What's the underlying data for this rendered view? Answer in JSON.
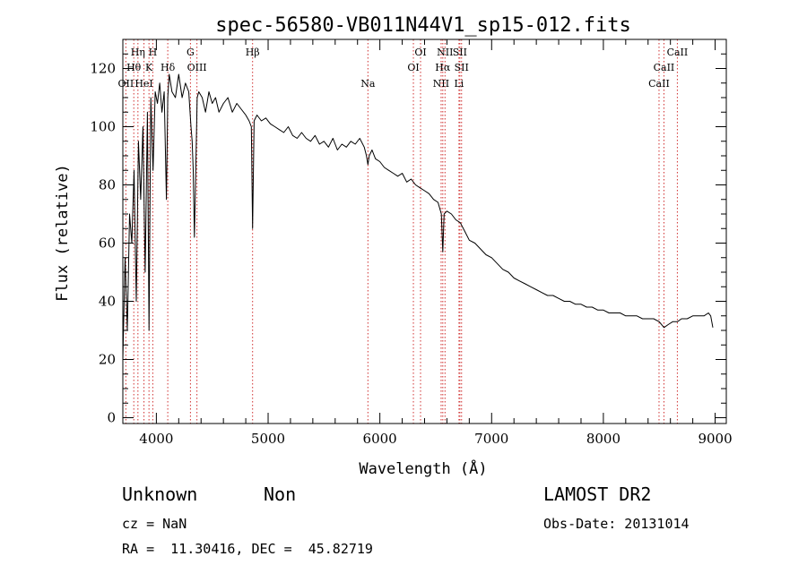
{
  "chart_data": {
    "type": "line",
    "title": "spec-56580-VB011N44V1_sp15-012.fits",
    "xlabel": "Wavelength (Å)",
    "ylabel": "Flux (relative)",
    "xlim": [
      3700,
      9100
    ],
    "ylim": [
      -2,
      130
    ],
    "xticks": [
      4000,
      5000,
      6000,
      7000,
      8000,
      9000
    ],
    "yticks": [
      0,
      20,
      40,
      60,
      80,
      100,
      120
    ],
    "grid": false,
    "series": [
      {
        "x": [
          3700,
          3720,
          3740,
          3760,
          3780,
          3800,
          3820,
          3840,
          3860,
          3880,
          3900,
          3920,
          3934,
          3950,
          3970,
          3990,
          4010,
          4030,
          4050,
          4070,
          4090,
          4102,
          4115,
          4140,
          4170,
          4200,
          4230,
          4260,
          4290,
          4310,
          4320,
          4330,
          4340,
          4350,
          4365,
          4380,
          4410,
          4440,
          4470,
          4500,
          4530,
          4560,
          4600,
          4640,
          4680,
          4720,
          4760,
          4800,
          4830,
          4850,
          4861,
          4875,
          4900,
          4940,
          4980,
          5020,
          5060,
          5100,
          5140,
          5180,
          5220,
          5260,
          5300,
          5340,
          5380,
          5420,
          5460,
          5500,
          5540,
          5580,
          5620,
          5660,
          5700,
          5740,
          5780,
          5820,
          5860,
          5880,
          5893,
          5905,
          5930,
          5960,
          6000,
          6040,
          6080,
          6120,
          6160,
          6200,
          6240,
          6280,
          6320,
          6360,
          6400,
          6440,
          6480,
          6520,
          6550,
          6563,
          6575,
          6600,
          6640,
          6680,
          6720,
          6760,
          6800,
          6850,
          6900,
          6950,
          7000,
          7050,
          7100,
          7150,
          7200,
          7250,
          7300,
          7350,
          7400,
          7450,
          7500,
          7550,
          7600,
          7650,
          7700,
          7750,
          7800,
          7850,
          7900,
          7950,
          8000,
          8050,
          8100,
          8150,
          8200,
          8250,
          8300,
          8350,
          8400,
          8450,
          8500,
          8542,
          8580,
          8620,
          8662,
          8700,
          8750,
          8800,
          8850,
          8900,
          8940,
          8960,
          8980
        ],
        "y": [
          20,
          55,
          30,
          70,
          60,
          85,
          40,
          95,
          75,
          100,
          50,
          105,
          30,
          110,
          85,
          112,
          108,
          115,
          105,
          112,
          75,
          110,
          118,
          112,
          110,
          118,
          110,
          115,
          112,
          100,
          95,
          85,
          62,
          80,
          110,
          112,
          110,
          105,
          112,
          108,
          110,
          105,
          108,
          110,
          105,
          108,
          106,
          104,
          102,
          100,
          65,
          102,
          104,
          102,
          103,
          101,
          100,
          99,
          98,
          100,
          97,
          96,
          98,
          96,
          95,
          97,
          94,
          95,
          93,
          96,
          92,
          94,
          93,
          95,
          94,
          96,
          93,
          90,
          87,
          90,
          92,
          89,
          88,
          86,
          85,
          84,
          83,
          84,
          81,
          82,
          80,
          79,
          78,
          77,
          75,
          74,
          70,
          57,
          70,
          71,
          70,
          68,
          67,
          64,
          61,
          60,
          58,
          56,
          55,
          53,
          51,
          50,
          48,
          47,
          46,
          45,
          44,
          43,
          42,
          42,
          41,
          40,
          40,
          39,
          39,
          38,
          38,
          37,
          37,
          36,
          36,
          36,
          35,
          35,
          35,
          34,
          34,
          34,
          33,
          31,
          32,
          33,
          33,
          34,
          34,
          35,
          35,
          35,
          36,
          35,
          31
        ]
      }
    ],
    "lines": [
      {
        "label": "Hη",
        "x": 3835,
        "row": 0
      },
      {
        "label": "H",
        "x": 3968,
        "row": 0
      },
      {
        "label": "G",
        "x": 4305,
        "row": 0
      },
      {
        "label": "Hβ",
        "x": 4861,
        "row": 0
      },
      {
        "label": "OI",
        "x": 6364,
        "row": 0
      },
      {
        "label": "NII",
        "x": 6583,
        "row": 0
      },
      {
        "label": "SII",
        "x": 6716,
        "row": 0
      },
      {
        "label": "CaII",
        "x": 8662,
        "row": 0
      },
      {
        "label": "Hθ",
        "x": 3798,
        "row": 1
      },
      {
        "label": "K",
        "x": 3934,
        "row": 1
      },
      {
        "label": "Hδ",
        "x": 4102,
        "row": 1
      },
      {
        "label": "OIII",
        "x": 4363,
        "row": 1
      },
      {
        "label": "OI",
        "x": 6300,
        "row": 1
      },
      {
        "label": "Hα",
        "x": 6563,
        "row": 1
      },
      {
        "label": "SII",
        "x": 6731,
        "row": 1
      },
      {
        "label": "CaII",
        "x": 8542,
        "row": 1
      },
      {
        "label": "OII",
        "x": 3727,
        "row": 2
      },
      {
        "label": "HeI",
        "x": 3889,
        "row": 2
      },
      {
        "label": "Na",
        "x": 5893,
        "row": 2
      },
      {
        "label": "NII",
        "x": 6548,
        "row": 2
      },
      {
        "label": "Li",
        "x": 6708,
        "row": 2
      },
      {
        "label": "CaII",
        "x": 8498,
        "row": 2
      }
    ]
  },
  "info": {
    "class": "Unknown",
    "subclass": "Non",
    "survey": "LAMOST DR2",
    "cz": "cz = NaN",
    "obs_date": "Obs-Date: 20131014",
    "coords": "RA =  11.30416, DEC =  45.82719"
  }
}
